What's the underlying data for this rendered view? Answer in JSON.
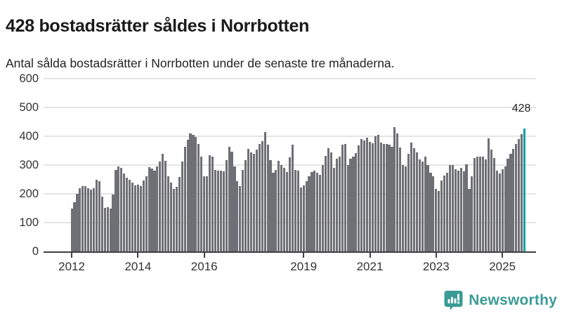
{
  "header": {
    "title": "428 bostadsrätter såldes i Norrbotten",
    "subtitle": "Antal sålda bostadsrätter i Norrbotten under de senaste tre månaderna."
  },
  "colors": {
    "bar": "#6f6f76",
    "highlight": "#0f9fa2",
    "grid": "#e4e4e4",
    "axis": "#404040",
    "brand": "#3a9c95"
  },
  "chart_data": {
    "type": "bar",
    "title": "428 bostadsrätter såldes i Norrbotten",
    "subtitle": "Antal sålda bostadsrätter i Norrbotten under de senaste tre månaderna.",
    "x_start": "2012-01",
    "x_end": "2025-09",
    "x_unit": "month (rolling 3-month totals)",
    "ylim": [
      0,
      600
    ],
    "yticks": [
      0,
      100,
      200,
      300,
      400,
      500,
      600
    ],
    "xticks": [
      {
        "label": "2012",
        "month_index": 0
      },
      {
        "label": "2014",
        "month_index": 24
      },
      {
        "label": "2016",
        "month_index": 48
      },
      {
        "label": "2019",
        "month_index": 84
      },
      {
        "label": "2021",
        "month_index": 108
      },
      {
        "label": "2023",
        "month_index": 132
      },
      {
        "label": "2025",
        "month_index": 156
      }
    ],
    "grid": "horizontal",
    "legend": "none",
    "highlight_last": true,
    "annotation": {
      "label": "428",
      "value": 428
    },
    "values": [
      150,
      170,
      200,
      220,
      227,
      228,
      220,
      215,
      219,
      248,
      243,
      190,
      152,
      153,
      150,
      198,
      284,
      295,
      290,
      270,
      255,
      248,
      240,
      230,
      232,
      228,
      246,
      262,
      292,
      288,
      280,
      296,
      312,
      338,
      315,
      262,
      238,
      218,
      225,
      258,
      313,
      363,
      388,
      410,
      404,
      398,
      372,
      330,
      261,
      261,
      333,
      330,
      284,
      281,
      280,
      278,
      317,
      363,
      347,
      296,
      243,
      227,
      284,
      318,
      355,
      344,
      339,
      353,
      374,
      384,
      415,
      370,
      317,
      272,
      282,
      314,
      300,
      290,
      275,
      327,
      370,
      284,
      280,
      223,
      230,
      245,
      260,
      275,
      280,
      272,
      265,
      300,
      332,
      358,
      343,
      290,
      322,
      330,
      370,
      372,
      300,
      321,
      330,
      341,
      368,
      390,
      386,
      394,
      380,
      375,
      400,
      406,
      378,
      372,
      374,
      370,
      364,
      432,
      409,
      360,
      301,
      295,
      340,
      378,
      359,
      344,
      319,
      313,
      329,
      301,
      272,
      261,
      218,
      210,
      246,
      264,
      273,
      299,
      301,
      285,
      281,
      291,
      277,
      303,
      218,
      261,
      325,
      329,
      330,
      330,
      319,
      392,
      354,
      325,
      280,
      270,
      285,
      295,
      322,
      340,
      356,
      372,
      390,
      408,
      428
    ]
  },
  "footer": {
    "brand": "Newsworthy",
    "brand_icon": "newsworthy-chart-bubble-icon"
  }
}
